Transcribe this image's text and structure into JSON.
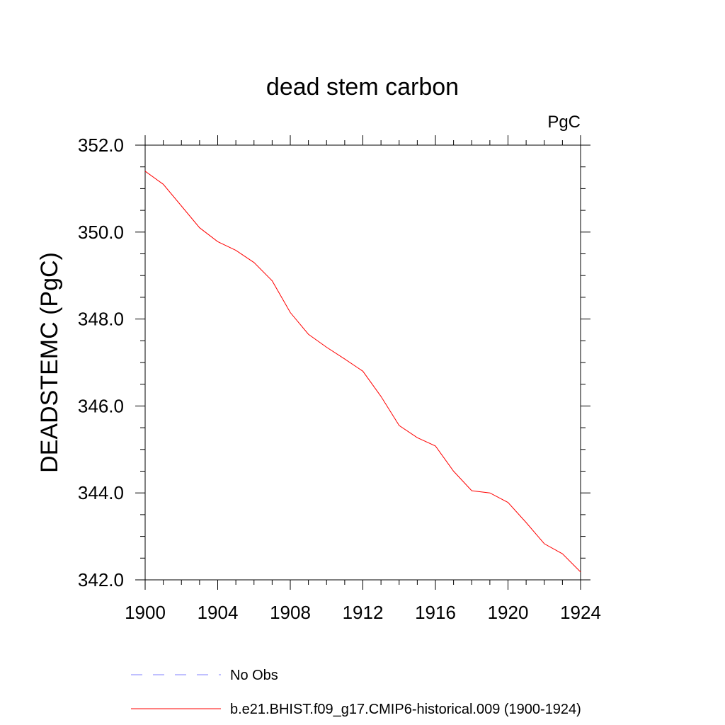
{
  "chart_data": {
    "type": "line",
    "title": "dead stem carbon",
    "units": "PgC",
    "xlabel": "",
    "ylabel": "DEADSTEMC  (PgC)",
    "xlim": [
      1900,
      1924
    ],
    "ylim": [
      342.0,
      352.0
    ],
    "xticks": [
      1900,
      1904,
      1908,
      1912,
      1916,
      1920,
      1924
    ],
    "xtick_labels": [
      "1900",
      "1904",
      "1908",
      "1912",
      "1916",
      "1920",
      "1924"
    ],
    "yticks": [
      342.0,
      344.0,
      346.0,
      348.0,
      350.0,
      352.0
    ],
    "ytick_labels": [
      "342.0",
      "344.0",
      "346.0",
      "348.0",
      "350.0",
      "352.0"
    ],
    "series": [
      {
        "name": "b.e21.BHIST.f09_g17.CMIP6-historical.009 (1900-1924)",
        "color": "#ff0000",
        "style": "solid",
        "x": [
          1900,
          1901,
          1902,
          1903,
          1904,
          1905,
          1906,
          1907,
          1908,
          1909,
          1910,
          1911,
          1912,
          1913,
          1914,
          1915,
          1916,
          1917,
          1918,
          1919,
          1920,
          1921,
          1922,
          1923,
          1924
        ],
        "y": [
          351.4,
          351.1,
          350.6,
          350.1,
          349.78,
          349.58,
          349.3,
          348.88,
          348.15,
          347.65,
          347.35,
          347.08,
          346.8,
          346.22,
          345.55,
          345.27,
          345.08,
          344.5,
          344.05,
          344.0,
          343.78,
          343.32,
          342.83,
          342.6,
          342.18
        ]
      }
    ],
    "legend": [
      {
        "label": "No Obs",
        "color": "#8080ff",
        "style": "dashed"
      },
      {
        "label": "b.e21.BHIST.f09_g17.CMIP6-historical.009 (1900-1924)",
        "color": "#ff0000",
        "style": "solid"
      }
    ],
    "legend_position": "bottom-left",
    "grid": false
  }
}
